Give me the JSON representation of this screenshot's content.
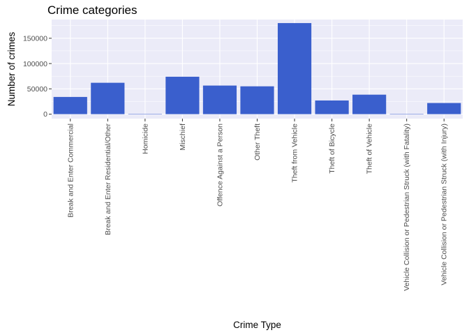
{
  "chart_data": {
    "type": "bar",
    "title": "Crime categories",
    "xlabel": "Crime Type",
    "ylabel": "Number of crimes",
    "categories": [
      "Break and Enter Commercial",
      "Break and Enter Residential/Other",
      "Homicide",
      "Mischief",
      "Offence Against a Person",
      "Other Theft",
      "Theft from Vehicle",
      "Theft of Bicycle",
      "Theft of Vehicle",
      "Vehicle Collision or Pedestrian Struck (with Fatality)",
      "Vehicle Collision or Pedestrian Struck (with Injury)"
    ],
    "values": [
      34000,
      62000,
      250,
      74000,
      56500,
      55000,
      180000,
      27000,
      38500,
      300,
      22000
    ],
    "ylim": [
      -8900,
      187000
    ],
    "yticks": [
      0,
      50000,
      100000,
      150000
    ],
    "ytick_labels": [
      "0",
      "50000",
      "100000",
      "150000"
    ],
    "grid": true,
    "colors": {
      "bar": "#3a5fcd",
      "panel": "#ebebf8",
      "grid_major": "#ffffff",
      "axis_text": "#4d4d4d"
    }
  }
}
